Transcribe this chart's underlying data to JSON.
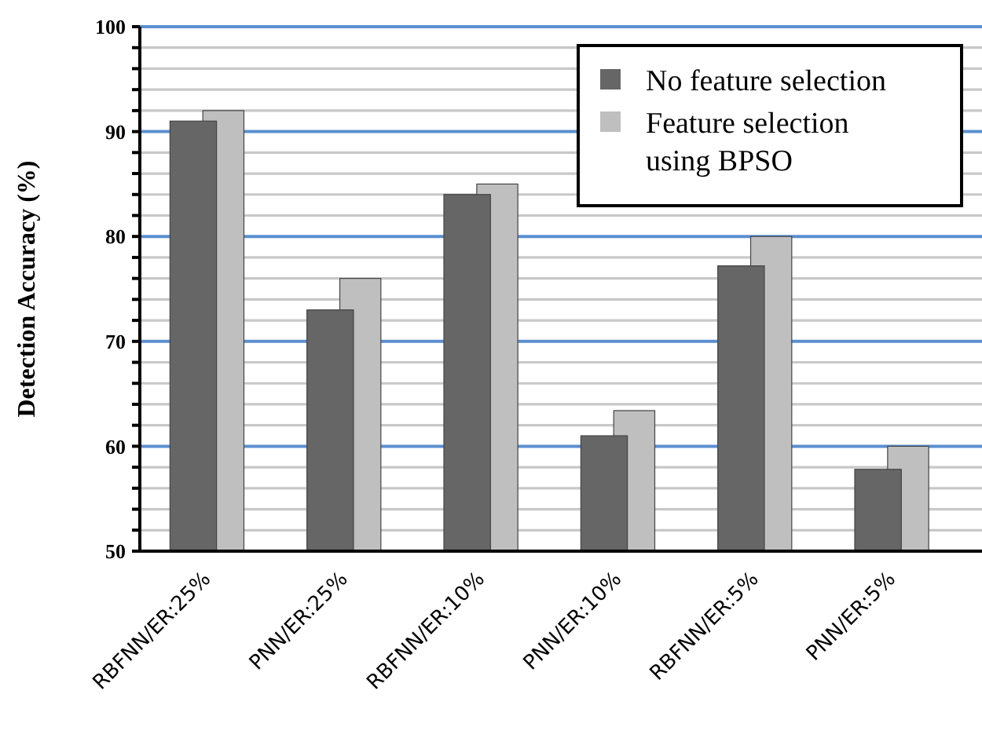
{
  "chart_data": {
    "type": "bar",
    "ylabel": "Detection Accuracy (%)",
    "categories": [
      "RBFNN/ER:25%",
      "PNN/ER:25%",
      "RBFNN/ER:10%",
      "PNN/ER:10%",
      "RBFNN/ER:5%",
      "PNN/ER:5%"
    ],
    "series": [
      {
        "name": "No feature selection",
        "color": "#666666",
        "values": [
          91,
          73,
          84,
          61,
          77.2,
          57.8
        ]
      },
      {
        "name": "Feature selection using BPSO",
        "color": "#bfbfbf",
        "values": [
          92,
          76,
          85,
          63.4,
          80,
          60
        ]
      }
    ],
    "ylim": [
      50,
      100
    ],
    "yticks": [
      50,
      {
        "value": 52,
        "label": null
      },
      {
        "value": 54,
        "label": null
      },
      {
        "value": 56,
        "label": null
      },
      {
        "value": 58,
        "label": null
      },
      60,
      {
        "value": 62,
        "label": null
      },
      {
        "value": 64,
        "label": null
      },
      {
        "value": 66,
        "label": null
      },
      {
        "value": 68,
        "label": null
      },
      70,
      {
        "value": 72,
        "label": null
      },
      {
        "value": 74,
        "label": null
      },
      {
        "value": 76,
        "label": null
      },
      {
        "value": 78,
        "label": null
      },
      80,
      {
        "value": 82,
        "label": null
      },
      {
        "value": 84,
        "label": null
      },
      {
        "value": 86,
        "label": null
      },
      {
        "value": 88,
        "label": null
      },
      90,
      {
        "value": 92,
        "label": null
      },
      {
        "value": 94,
        "label": null
      },
      {
        "value": 96,
        "label": null
      },
      {
        "value": 98,
        "label": null
      },
      100
    ],
    "grid": true,
    "legend": "top right"
  }
}
